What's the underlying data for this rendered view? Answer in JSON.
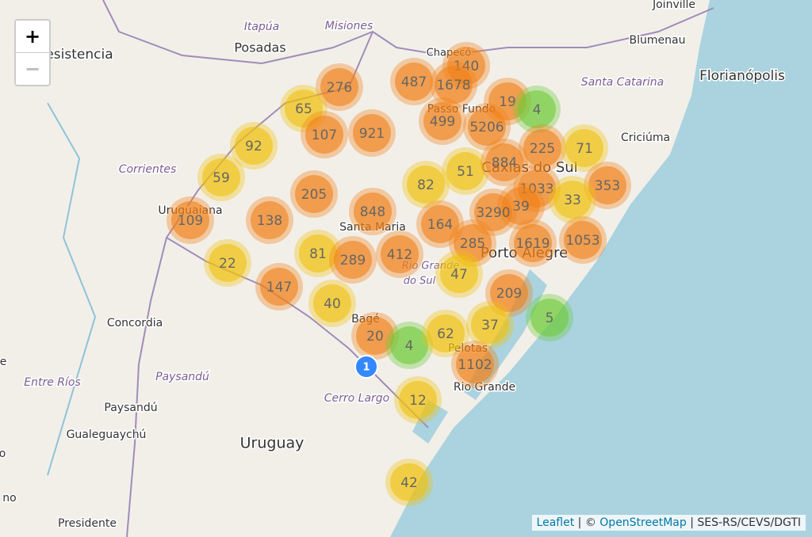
{
  "zoom": {
    "in": "+",
    "out": "−"
  },
  "places": [
    "Joinville",
    "Blumenau",
    "Florianópolis",
    "Santa Catarina",
    "Criciúma",
    "Chapecó",
    "Itapúa",
    "Misiones",
    "Posadas",
    "esistencia",
    "Corrientes",
    "Uruguaiana",
    "Santa Maria",
    "Rio Grande",
    "do Sul",
    "Porto Alegre",
    "Caxias do Sul",
    "Passo Fundo",
    "Bagé",
    "Pelotas",
    "Rio Grande",
    "Cerro Largo",
    "Concordia",
    "Paysandú",
    "Entre Ríos",
    "Paysandú",
    "Gualeguaychú",
    "Uruguay",
    "Presidente",
    "no",
    "e",
    "o"
  ],
  "clusters": [
    {
      "count": 140,
      "color": "#f18017"
    },
    {
      "count": 487,
      "color": "#f18017"
    },
    {
      "count": 1678,
      "color": "#f18017"
    },
    {
      "count": 276,
      "color": "#f18017"
    },
    {
      "count": 65,
      "color": "#f0c20c"
    },
    {
      "count": 107,
      "color": "#f18017"
    },
    {
      "count": 921,
      "color": "#f18017"
    },
    {
      "count": 499,
      "color": "#f18017"
    },
    {
      "count": 5206,
      "color": "#f18017"
    },
    {
      "count": 19,
      "color": "#f18017"
    },
    {
      "count": 4,
      "color": "#6ecc39"
    },
    {
      "count": 92,
      "color": "#f0c20c"
    },
    {
      "count": 225,
      "color": "#f18017"
    },
    {
      "count": 71,
      "color": "#f0c20c"
    },
    {
      "count": 59,
      "color": "#f0c20c"
    },
    {
      "count": 82,
      "color": "#f0c20c"
    },
    {
      "count": 51,
      "color": "#f0c20c"
    },
    {
      "count": 884,
      "color": "#f18017"
    },
    {
      "count": 1033,
      "color": "#f18017"
    },
    {
      "count": 353,
      "color": "#f18017"
    },
    {
      "count": 33,
      "color": "#f0c20c"
    },
    {
      "count": 205,
      "color": "#f18017"
    },
    {
      "count": 138,
      "color": "#f18017"
    },
    {
      "count": 848,
      "color": "#f18017"
    },
    {
      "count": 164,
      "color": "#f18017"
    },
    {
      "count": 39,
      "color": "#f18017"
    },
    {
      "count": 3290,
      "color": "#f18017"
    },
    {
      "count": 109,
      "color": "#f18017"
    },
    {
      "count": 81,
      "color": "#f0c20c"
    },
    {
      "count": 289,
      "color": "#f18017"
    },
    {
      "count": 412,
      "color": "#f18017"
    },
    {
      "count": 285,
      "color": "#f18017"
    },
    {
      "count": 1619,
      "color": "#f18017"
    },
    {
      "count": 1053,
      "color": "#f18017"
    },
    {
      "count": 22,
      "color": "#f0c20c"
    },
    {
      "count": 147,
      "color": "#f18017"
    },
    {
      "count": 47,
      "color": "#f0c20c"
    },
    {
      "count": 209,
      "color": "#f18017"
    },
    {
      "count": 40,
      "color": "#f0c20c"
    },
    {
      "count": 5,
      "color": "#6ecc39"
    },
    {
      "count": 20,
      "color": "#f18017"
    },
    {
      "count": 4,
      "color": "#6ecc39"
    },
    {
      "count": 62,
      "color": "#f0c20c"
    },
    {
      "count": 37,
      "color": "#f0c20c"
    },
    {
      "count": 1102,
      "color": "#f18017"
    },
    {
      "count": 1,
      "color": "#3388ff"
    },
    {
      "count": 12,
      "color": "#f0c20c"
    },
    {
      "count": 42,
      "color": "#f0c20c"
    }
  ],
  "attribution": {
    "leaflet": "Leaflet",
    "copy": "| ©",
    "osm": "OpenStreetMap",
    "source": "| SES-RS/CEVS/DGTI"
  }
}
